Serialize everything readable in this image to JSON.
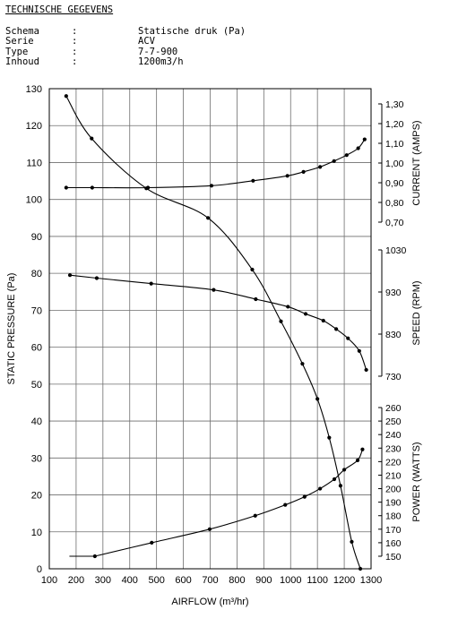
{
  "header": {
    "title": "TECHNISCHE GEGEVENS",
    "specs": [
      {
        "label": "Schema",
        "sep": ":",
        "value": "Statische druk (Pa)"
      },
      {
        "label": "Serie",
        "sep": ":",
        "value": "ACV"
      },
      {
        "label": "Type",
        "sep": ":",
        "value": "7-7-900"
      },
      {
        "label": "Inhoud",
        "sep": ":",
        "value": "1200m3/h"
      }
    ]
  },
  "chart_data": {
    "type": "line",
    "title": "",
    "xlabel": "AIRFLOW (m³/hr)",
    "ylabel": "STATIC PRESSURE (Pa)",
    "xlim": [
      100,
      1300
    ],
    "ylim": [
      0,
      130
    ],
    "x_ticks": [
      100,
      200,
      300,
      400,
      500,
      600,
      700,
      800,
      900,
      1000,
      1100,
      1200,
      1300
    ],
    "y_ticks": [
      0,
      10,
      20,
      30,
      40,
      50,
      60,
      70,
      80,
      90,
      100,
      110,
      120,
      130
    ],
    "grid": true,
    "legend": "none",
    "right_axes": [
      {
        "label": "CURRENT (AMPS)",
        "range": [
          0.7,
          1.3
        ],
        "ticks": [
          "0,70",
          "0,80",
          "0,90",
          "1,00",
          "1,10",
          "1,20",
          "1,30"
        ]
      },
      {
        "label": "SPEED (RPM)",
        "range": [
          730,
          1030
        ],
        "ticks": [
          "730",
          "830",
          "930",
          "1030"
        ]
      },
      {
        "label": "POWER (WATTS)",
        "range": [
          150,
          260
        ],
        "ticks": [
          "150",
          "160",
          "170",
          "180",
          "190",
          "200",
          "210",
          "220",
          "230",
          "240",
          "250",
          "260"
        ]
      }
    ],
    "series": [
      {
        "axis": "STATIC PRESSURE (Pa)",
        "points": [
          [
            163,
            128
          ],
          [
            258,
            116.5
          ],
          [
            462,
            103
          ],
          [
            692,
            95
          ],
          [
            857,
            81
          ],
          [
            964,
            67
          ],
          [
            1044,
            55.5
          ],
          [
            1100,
            46
          ],
          [
            1144,
            35.5
          ],
          [
            1186,
            22.5
          ],
          [
            1228,
            7.3
          ],
          [
            1260,
            0
          ]
        ]
      },
      {
        "axis": "CURRENT (AMPS)",
        "points": [
          [
            163,
            0.875
          ],
          [
            260,
            0.875
          ],
          [
            468,
            0.875
          ],
          [
            705,
            0.885
          ],
          [
            860,
            0.91
          ],
          [
            988,
            0.935
          ],
          [
            1048,
            0.955
          ],
          [
            1110,
            0.98
          ],
          [
            1162,
            1.01
          ],
          [
            1209,
            1.04
          ],
          [
            1252,
            1.075
          ],
          [
            1276,
            1.12
          ]
        ]
      },
      {
        "axis": "SPEED (RPM)",
        "points": [
          [
            177,
            970
          ],
          [
            277,
            963
          ],
          [
            480,
            950
          ],
          [
            713,
            935
          ],
          [
            870,
            913
          ],
          [
            990,
            895
          ],
          [
            1056,
            878
          ],
          [
            1122,
            862
          ],
          [
            1170,
            842
          ],
          [
            1214,
            820
          ],
          [
            1256,
            790
          ],
          [
            1282,
            745
          ]
        ]
      },
      {
        "axis": "POWER (WATTS)",
        "start": [
          175,
          150
        ],
        "points": [
          [
            270,
            150
          ],
          [
            482,
            160
          ],
          [
            698,
            170
          ],
          [
            868,
            180
          ],
          [
            980,
            188
          ],
          [
            1052,
            194
          ],
          [
            1110,
            200
          ],
          [
            1163,
            207
          ],
          [
            1200,
            214
          ],
          [
            1250,
            221
          ],
          [
            1268,
            229
          ]
        ]
      }
    ]
  }
}
